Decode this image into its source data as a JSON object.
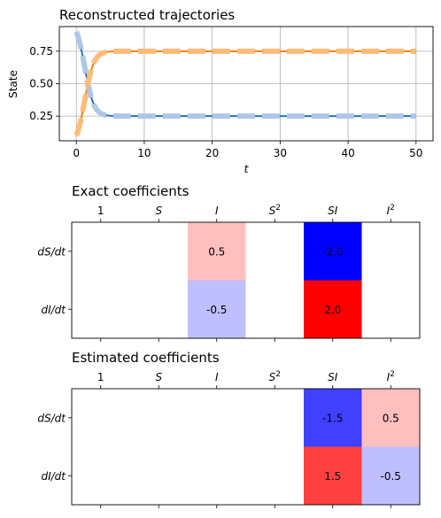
{
  "chart_data": [
    {
      "type": "line",
      "title": "Reconstructed trajectories",
      "xlabel": "t",
      "ylabel": "State",
      "xlim": [
        -2.5,
        52.5
      ],
      "ylim": [
        0.06,
        0.94
      ],
      "xticks": [
        0,
        10,
        20,
        30,
        40,
        50
      ],
      "yticks": [
        0.25,
        0.5,
        0.75
      ],
      "xtick_labels": [
        "0",
        "10",
        "20",
        "30",
        "40",
        "50"
      ],
      "ytick_labels": [
        "0.25",
        "0.50",
        "0.75"
      ],
      "grid": true,
      "legend": "none",
      "model": {
        "beta": 2.0,
        "gamma": 0.5,
        "S0": 0.9,
        "I0": 0.1,
        "t_end": 50
      },
      "series": [
        {
          "role": "S true",
          "color": "#1f77b4",
          "style": "solid"
        },
        {
          "role": "I true",
          "color": "#ff7f0e",
          "style": "solid"
        },
        {
          "role": "S estimated",
          "color": "#aec7e8",
          "style": "dashed"
        },
        {
          "role": "I estimated",
          "color": "#ffbb78",
          "style": "dashed"
        }
      ]
    },
    {
      "type": "heatmap",
      "title": "Exact coefficients",
      "columns": [
        "1",
        "S",
        "I",
        "S²",
        "SI",
        "I²"
      ],
      "rows": [
        "dS/dt",
        "dI/dt"
      ],
      "values": [
        [
          0,
          0,
          0.5,
          0,
          -2.0,
          0
        ],
        [
          0,
          0,
          -0.5,
          0,
          2.0,
          0
        ]
      ],
      "labels": [
        [
          "",
          "",
          "0.5",
          "",
          "-2.0",
          ""
        ],
        [
          "",
          "",
          "-0.5",
          "",
          "2.0",
          ""
        ]
      ],
      "colormap": "bwr",
      "vlim": [
        -2.0,
        2.0
      ]
    },
    {
      "type": "heatmap",
      "title": "Estimated coefficients",
      "columns": [
        "1",
        "S",
        "I",
        "S²",
        "SI",
        "I²"
      ],
      "rows": [
        "dS/dt",
        "dI/dt"
      ],
      "values": [
        [
          0,
          0,
          0,
          0,
          -1.5,
          0.5
        ],
        [
          0,
          0,
          0,
          0,
          1.5,
          -0.5
        ]
      ],
      "labels": [
        [
          "",
          "",
          "",
          "",
          "-1.5",
          "0.5"
        ],
        [
          "",
          "",
          "",
          "",
          "1.5",
          "-0.5"
        ]
      ],
      "colormap": "bwr",
      "vlim": [
        -2.0,
        2.0
      ]
    }
  ],
  "colors": {
    "grid": "#b0b0b0",
    "axes": "#000000",
    "heat_positive": "#ff0000",
    "heat_negative": "#0000ff"
  }
}
